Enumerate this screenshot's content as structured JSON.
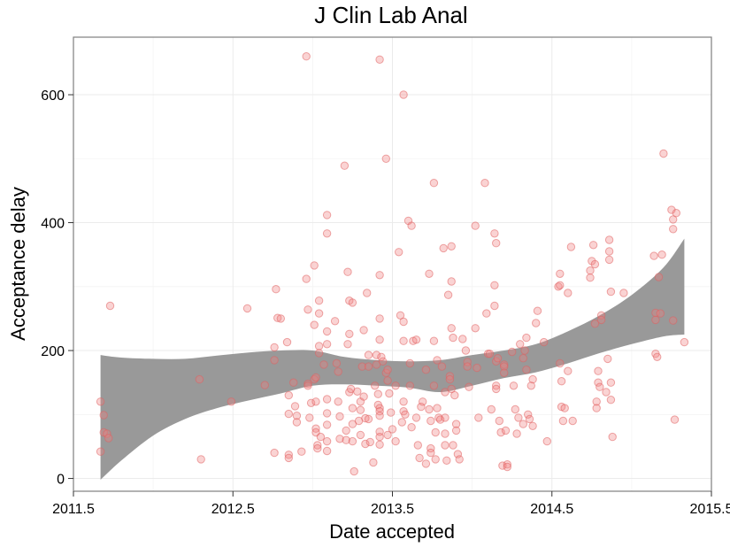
{
  "chart_data": {
    "type": "scatter",
    "title": "J Clin Lab Anal",
    "xlabel": "Date accepted",
    "ylabel": "Acceptance delay",
    "xlim": [
      2011.5,
      2015.5
    ],
    "ylim": [
      -20,
      690
    ],
    "x_ticks": [
      2011.5,
      2012.5,
      2013.5,
      2014.5,
      2015.5
    ],
    "x_tick_labels": [
      "2011.5",
      "2012.5",
      "2013.5",
      "2014.5",
      "2015.5"
    ],
    "y_ticks": [
      0,
      200,
      400,
      600
    ],
    "y_tick_labels": [
      "0",
      "200",
      "400",
      "600"
    ],
    "grid": true,
    "point_color": "#f08080",
    "band_color": "#999999",
    "points": [
      [
        2011.67,
        120
      ],
      [
        2011.67,
        42
      ],
      [
        2011.69,
        99
      ],
      [
        2011.69,
        72
      ],
      [
        2011.71,
        70
      ],
      [
        2011.72,
        63
      ],
      [
        2011.73,
        270
      ],
      [
        2012.29,
        155
      ],
      [
        2012.3,
        30
      ],
      [
        2012.49,
        120
      ],
      [
        2012.59,
        266
      ],
      [
        2012.7,
        146
      ],
      [
        2012.76,
        205
      ],
      [
        2012.76,
        185
      ],
      [
        2012.76,
        40
      ],
      [
        2012.77,
        296
      ],
      [
        2012.78,
        251
      ],
      [
        2012.8,
        250
      ],
      [
        2012.84,
        213
      ],
      [
        2012.85,
        130
      ],
      [
        2012.85,
        101
      ],
      [
        2012.85,
        37
      ],
      [
        2012.85,
        32
      ],
      [
        2012.88,
        150
      ],
      [
        2012.89,
        113
      ],
      [
        2012.9,
        98
      ],
      [
        2012.9,
        88
      ],
      [
        2012.93,
        42
      ],
      [
        2012.96,
        660
      ],
      [
        2012.96,
        312
      ],
      [
        2012.97,
        264
      ],
      [
        2012.97,
        148
      ],
      [
        2012.97,
        145
      ],
      [
        2012.98,
        95
      ],
      [
        2012.99,
        118
      ],
      [
        2013.01,
        333
      ],
      [
        2013.01,
        240
      ],
      [
        2013.01,
        155
      ],
      [
        2013.02,
        158
      ],
      [
        2013.02,
        120
      ],
      [
        2013.02,
        78
      ],
      [
        2013.02,
        72
      ],
      [
        2013.03,
        52
      ],
      [
        2013.03,
        47
      ],
      [
        2013.04,
        278
      ],
      [
        2013.04,
        258
      ],
      [
        2013.04,
        207
      ],
      [
        2013.04,
        196
      ],
      [
        2013.05,
        65
      ],
      [
        2013.07,
        178
      ],
      [
        2013.09,
        412
      ],
      [
        2013.09,
        383
      ],
      [
        2013.09,
        230
      ],
      [
        2013.09,
        210
      ],
      [
        2013.09,
        124
      ],
      [
        2013.09,
        102
      ],
      [
        2013.09,
        84
      ],
      [
        2013.09,
        58
      ],
      [
        2013.09,
        43
      ],
      [
        2013.14,
        246
      ],
      [
        2013.15,
        180
      ],
      [
        2013.16,
        167
      ],
      [
        2013.16,
        120
      ],
      [
        2013.17,
        97
      ],
      [
        2013.17,
        62
      ],
      [
        2013.2,
        489
      ],
      [
        2013.21,
        75
      ],
      [
        2013.21,
        60
      ],
      [
        2013.22,
        210
      ],
      [
        2013.22,
        323
      ],
      [
        2013.23,
        278
      ],
      [
        2013.23,
        226
      ],
      [
        2013.23,
        135
      ],
      [
        2013.24,
        140
      ],
      [
        2013.25,
        275
      ],
      [
        2013.25,
        110
      ],
      [
        2013.25,
        85
      ],
      [
        2013.25,
        58
      ],
      [
        2013.26,
        11
      ],
      [
        2013.28,
        136
      ],
      [
        2013.29,
        90
      ],
      [
        2013.3,
        107
      ],
      [
        2013.3,
        120
      ],
      [
        2013.3,
        68
      ],
      [
        2013.31,
        175
      ],
      [
        2013.32,
        232
      ],
      [
        2013.32,
        128
      ],
      [
        2013.33,
        94
      ],
      [
        2013.33,
        54
      ],
      [
        2013.34,
        290
      ],
      [
        2013.35,
        193
      ],
      [
        2013.35,
        175
      ],
      [
        2013.35,
        93
      ],
      [
        2013.36,
        57
      ],
      [
        2013.38,
        25
      ],
      [
        2013.39,
        145
      ],
      [
        2013.4,
        193
      ],
      [
        2013.4,
        178
      ],
      [
        2013.41,
        132
      ],
      [
        2013.41,
        115
      ],
      [
        2013.42,
        655
      ],
      [
        2013.42,
        318
      ],
      [
        2013.42,
        250
      ],
      [
        2013.42,
        217
      ],
      [
        2013.42,
        110
      ],
      [
        2013.42,
        105
      ],
      [
        2013.42,
        98
      ],
      [
        2013.42,
        73
      ],
      [
        2013.42,
        65
      ],
      [
        2013.42,
        53
      ],
      [
        2013.43,
        190
      ],
      [
        2013.44,
        183
      ],
      [
        2013.46,
        500
      ],
      [
        2013.46,
        165
      ],
      [
        2013.47,
        170
      ],
      [
        2013.47,
        153
      ],
      [
        2013.47,
        68
      ],
      [
        2013.48,
        133
      ],
      [
        2013.49,
        103
      ],
      [
        2013.5,
        77
      ],
      [
        2013.52,
        145
      ],
      [
        2013.52,
        58
      ],
      [
        2013.54,
        354
      ],
      [
        2013.55,
        255
      ],
      [
        2013.56,
        88
      ],
      [
        2013.57,
        600
      ],
      [
        2013.57,
        245
      ],
      [
        2013.57,
        215
      ],
      [
        2013.57,
        120
      ],
      [
        2013.57,
        105
      ],
      [
        2013.58,
        100
      ],
      [
        2013.6,
        403
      ],
      [
        2013.61,
        180
      ],
      [
        2013.61,
        145
      ],
      [
        2013.62,
        395
      ],
      [
        2013.62,
        80
      ],
      [
        2013.63,
        215
      ],
      [
        2013.65,
        217
      ],
      [
        2013.65,
        95
      ],
      [
        2013.66,
        52
      ],
      [
        2013.67,
        32
      ],
      [
        2013.68,
        112
      ],
      [
        2013.69,
        120
      ],
      [
        2013.71,
        170
      ],
      [
        2013.71,
        23
      ],
      [
        2013.73,
        320
      ],
      [
        2013.73,
        108
      ],
      [
        2013.74,
        90
      ],
      [
        2013.74,
        47
      ],
      [
        2013.74,
        40
      ],
      [
        2013.76,
        462
      ],
      [
        2013.76,
        215
      ],
      [
        2013.76,
        145
      ],
      [
        2013.77,
        72
      ],
      [
        2013.77,
        30
      ],
      [
        2013.78,
        185
      ],
      [
        2013.78,
        110
      ],
      [
        2013.79,
        95
      ],
      [
        2013.8,
        92
      ],
      [
        2013.81,
        175
      ],
      [
        2013.82,
        360
      ],
      [
        2013.83,
        135
      ],
      [
        2013.83,
        95
      ],
      [
        2013.83,
        70
      ],
      [
        2013.83,
        52
      ],
      [
        2013.84,
        28
      ],
      [
        2013.85,
        287
      ],
      [
        2013.86,
        160
      ],
      [
        2013.86,
        155
      ],
      [
        2013.87,
        363
      ],
      [
        2013.87,
        308
      ],
      [
        2013.87,
        235
      ],
      [
        2013.87,
        140
      ],
      [
        2013.88,
        220
      ],
      [
        2013.88,
        52
      ],
      [
        2013.89,
        130
      ],
      [
        2013.9,
        85
      ],
      [
        2013.9,
        75
      ],
      [
        2013.91,
        38
      ],
      [
        2013.92,
        30
      ],
      [
        2013.94,
        218
      ],
      [
        2013.96,
        200
      ],
      [
        2013.97,
        182
      ],
      [
        2013.97,
        175
      ],
      [
        2013.98,
        143
      ],
      [
        2014.02,
        395
      ],
      [
        2014.02,
        235
      ],
      [
        2014.03,
        173
      ],
      [
        2014.04,
        95
      ],
      [
        2014.08,
        462
      ],
      [
        2014.09,
        258
      ],
      [
        2014.1,
        195
      ],
      [
        2014.11,
        195
      ],
      [
        2014.12,
        108
      ],
      [
        2014.14,
        383
      ],
      [
        2014.14,
        302
      ],
      [
        2014.14,
        270
      ],
      [
        2014.15,
        368
      ],
      [
        2014.15,
        183
      ],
      [
        2014.15,
        145
      ],
      [
        2014.15,
        140
      ],
      [
        2014.16,
        188
      ],
      [
        2014.17,
        90
      ],
      [
        2014.18,
        72
      ],
      [
        2014.19,
        20
      ],
      [
        2014.2,
        178
      ],
      [
        2014.2,
        175
      ],
      [
        2014.2,
        165
      ],
      [
        2014.21,
        75
      ],
      [
        2014.22,
        22
      ],
      [
        2014.22,
        18
      ],
      [
        2014.25,
        198
      ],
      [
        2014.26,
        145
      ],
      [
        2014.27,
        108
      ],
      [
        2014.28,
        70
      ],
      [
        2014.29,
        95
      ],
      [
        2014.3,
        210
      ],
      [
        2014.32,
        188
      ],
      [
        2014.32,
        85
      ],
      [
        2014.33,
        200
      ],
      [
        2014.34,
        170
      ],
      [
        2014.34,
        220
      ],
      [
        2014.35,
        100
      ],
      [
        2014.36,
        93
      ],
      [
        2014.37,
        145
      ],
      [
        2014.38,
        155
      ],
      [
        2014.38,
        82
      ],
      [
        2014.4,
        243
      ],
      [
        2014.41,
        262
      ],
      [
        2014.45,
        213
      ],
      [
        2014.47,
        58
      ],
      [
        2014.54,
        300
      ],
      [
        2014.55,
        320
      ],
      [
        2014.55,
        302
      ],
      [
        2014.55,
        180
      ],
      [
        2014.56,
        152
      ],
      [
        2014.56,
        112
      ],
      [
        2014.57,
        90
      ],
      [
        2014.58,
        110
      ],
      [
        2014.6,
        290
      ],
      [
        2014.6,
        168
      ],
      [
        2014.62,
        362
      ],
      [
        2014.63,
        90
      ],
      [
        2014.74,
        325
      ],
      [
        2014.74,
        314
      ],
      [
        2014.75,
        340
      ],
      [
        2014.76,
        365
      ],
      [
        2014.77,
        335
      ],
      [
        2014.77,
        242
      ],
      [
        2014.78,
        120
      ],
      [
        2014.78,
        110
      ],
      [
        2014.79,
        168
      ],
      [
        2014.79,
        150
      ],
      [
        2014.8,
        143
      ],
      [
        2014.81,
        255
      ],
      [
        2014.81,
        248
      ],
      [
        2014.84,
        135
      ],
      [
        2014.85,
        187
      ],
      [
        2014.86,
        373
      ],
      [
        2014.86,
        355
      ],
      [
        2014.86,
        342
      ],
      [
        2014.87,
        292
      ],
      [
        2014.87,
        150
      ],
      [
        2014.87,
        123
      ],
      [
        2014.88,
        65
      ],
      [
        2014.95,
        290
      ],
      [
        2015.14,
        348
      ],
      [
        2015.15,
        259
      ],
      [
        2015.15,
        248
      ],
      [
        2015.15,
        195
      ],
      [
        2015.16,
        190
      ],
      [
        2015.17,
        315
      ],
      [
        2015.18,
        258
      ],
      [
        2015.19,
        350
      ],
      [
        2015.2,
        508
      ],
      [
        2015.25,
        420
      ],
      [
        2015.26,
        405
      ],
      [
        2015.26,
        390
      ],
      [
        2015.26,
        247
      ],
      [
        2015.27,
        92
      ],
      [
        2015.28,
        415
      ],
      [
        2015.33,
        213
      ]
    ],
    "smooth_band": {
      "x": [
        2011.67,
        2011.8,
        2012.0,
        2012.2,
        2012.4,
        2012.6,
        2012.8,
        2013.0,
        2013.2,
        2013.4,
        2013.6,
        2013.8,
        2014.0,
        2014.2,
        2014.4,
        2014.6,
        2014.8,
        2015.0,
        2015.2,
        2015.33
      ],
      "lower": [
        -2,
        28,
        67,
        93,
        110,
        122,
        133,
        145,
        147,
        145,
        142,
        135,
        145,
        157,
        166,
        180,
        196,
        210,
        222,
        225
      ],
      "upper": [
        193,
        189,
        187,
        187,
        192,
        197,
        200,
        200,
        190,
        185,
        183,
        185,
        193,
        200,
        210,
        230,
        255,
        287,
        330,
        375
      ]
    }
  }
}
